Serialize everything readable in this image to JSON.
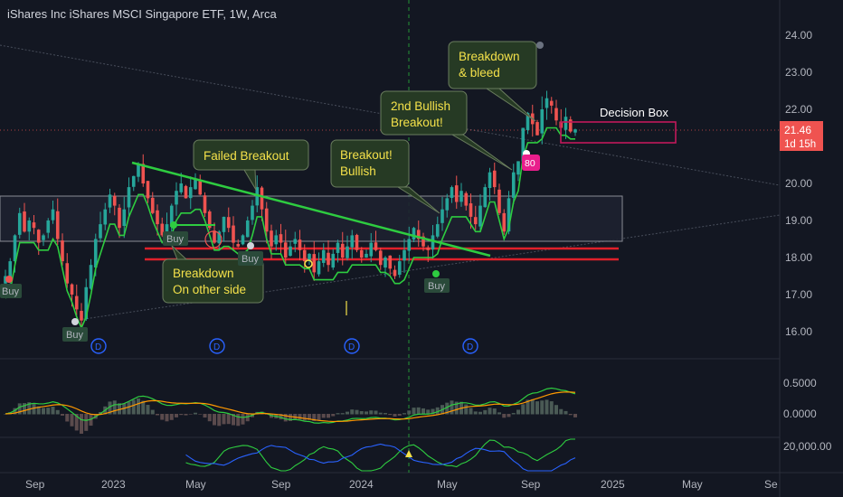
{
  "header": {
    "title": "iShares Inc iShares MSCI Singapore ETF, 1W, Arca"
  },
  "colors": {
    "background": "#131722",
    "up": "#26a69a",
    "down": "#ef5350",
    "trend_green": "#2ecc40",
    "support_red": "#e0202a",
    "magenta": "#c2185b",
    "callout_bg": "#263a24",
    "callout_text": "#f4e14a"
  },
  "price_axis": {
    "ticks": [
      "24.00",
      "23.00",
      "22.00",
      "21.00",
      "20.00",
      "19.00",
      "18.00",
      "17.00",
      "16.00"
    ],
    "current_price": "21.46",
    "countdown": "1d 15h"
  },
  "indicator_axis": {
    "ticks": [
      "0.5000",
      "0.0000"
    ]
  },
  "volume_axis": {
    "ticks": [
      "20,000.00"
    ]
  },
  "time_axis": {
    "labels": [
      "Sep",
      "2023",
      "May",
      "Sep",
      "2024",
      "May",
      "Sep",
      "2025",
      "May",
      "Se"
    ]
  },
  "annotations": {
    "failed_breakout": "Failed Breakout",
    "breakdown_other_l1": "Breakdown",
    "breakdown_other_l2": "On other side",
    "breakout_bullish_l1": "Breakout!",
    "breakout_bullish_l2": "Bullish",
    "second_breakout_l1": "2nd Bullish",
    "second_breakout_l2": "Breakout!",
    "breakdown_bleed_l1": "Breakdown",
    "breakdown_bleed_l2": "& bleed",
    "decision_box": "Decision Box"
  },
  "signals": {
    "buy_label": "Buy",
    "dividend_label": "D",
    "badge_label": "80"
  },
  "chart_data": {
    "type": "candlestick",
    "title": "iShares Inc iShares MSCI Singapore ETF, 1W, Arca",
    "ylim": [
      15.5,
      24.5
    ],
    "levels": {
      "support_upper": 18.25,
      "support_lower": 17.95,
      "range_top": 19.65,
      "range_bottom": 18.45
    },
    "weekly_closes": [
      17.5,
      17.9,
      18.6,
      19.2,
      18.7,
      19.0,
      18.8,
      18.4,
      18.6,
      19.0,
      19.3,
      18.5,
      17.9,
      17.3,
      17.0,
      16.6,
      16.3,
      17.2,
      17.8,
      18.5,
      18.9,
      19.3,
      19.7,
      19.4,
      18.8,
      19.3,
      19.9,
      20.2,
      20.5,
      20.0,
      19.6,
      19.2,
      18.9,
      18.6,
      18.9,
      19.4,
      19.8,
      20.0,
      19.6,
      19.9,
      20.1,
      19.7,
      19.2,
      18.8,
      18.4,
      18.7,
      19.1,
      18.8,
      18.4,
      18.3,
      18.6,
      19.0,
      19.4,
      19.9,
      19.3,
      18.7,
      18.3,
      18.6,
      18.4,
      18.0,
      18.3,
      18.5,
      18.2,
      17.9,
      18.1,
      17.6,
      17.9,
      18.2,
      17.8,
      18.1,
      18.4,
      18.0,
      18.3,
      18.6,
      18.2,
      18.0,
      18.1,
      18.4,
      18.2,
      17.8,
      18.0,
      17.7,
      17.5,
      17.9,
      18.2,
      18.5,
      18.8,
      18.5,
      18.3,
      18.2,
      18.6,
      18.9,
      19.3,
      19.6,
      19.9,
      19.5,
      19.8,
      19.4,
      19.1,
      18.9,
      19.4,
      19.9,
      20.3,
      19.9,
      19.2,
      18.7,
      19.6,
      20.3,
      20.6,
      21.5,
      21.9,
      21.6,
      21.3,
      22.0,
      22.3,
      22.1,
      21.7,
      21.5,
      21.8,
      21.4,
      21.46
    ]
  }
}
